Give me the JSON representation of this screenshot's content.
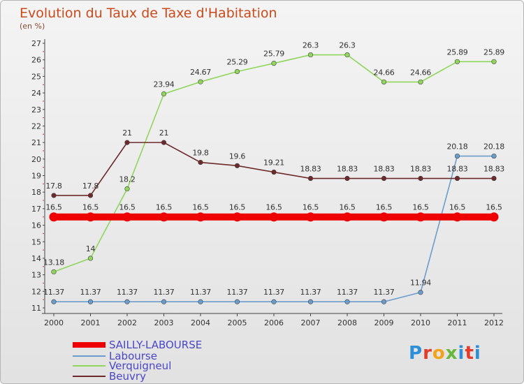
{
  "chart_data": {
    "type": "line",
    "title": "Evolution du Taux de Taxe d'Habitation",
    "subtitle": "(en %)",
    "x": [
      "2000",
      "2001",
      "2002",
      "2003",
      "2004",
      "2005",
      "2006",
      "2007",
      "2008",
      "2009",
      "2010",
      "2011",
      "2012"
    ],
    "ylim": [
      11,
      27
    ],
    "yticks": [
      11,
      12,
      13,
      14,
      15,
      16,
      17,
      18,
      19,
      20,
      21,
      22,
      23,
      24,
      25,
      26,
      27
    ],
    "grid": false,
    "legend_position": "bottom-left",
    "series": [
      {
        "name": "SAILLY-LABOURSE",
        "color": "#ee0000",
        "values": [
          16.5,
          16.5,
          16.5,
          16.5,
          16.5,
          16.5,
          16.5,
          16.5,
          16.5,
          16.5,
          16.5,
          16.5,
          16.5
        ],
        "labels": [
          "16.5",
          "16.5",
          "16.5",
          "16.5",
          "16.5",
          "16.5",
          "16.5",
          "16.5",
          "16.5",
          "16.5",
          "16.5",
          "16.5",
          "16.5"
        ]
      },
      {
        "name": "Labourse",
        "color": "#6a9ccc",
        "values": [
          11.37,
          11.37,
          11.37,
          11.37,
          11.37,
          11.37,
          11.37,
          11.37,
          11.37,
          11.37,
          11.94,
          20.18,
          20.18
        ],
        "labels": [
          "11.37",
          "11.37",
          "11.37",
          "11.37",
          "11.37",
          "11.37",
          "11.37",
          "11.37",
          "11.37",
          "11.37",
          "11.94",
          "20.18",
          "20.18"
        ]
      },
      {
        "name": "Verquigneul",
        "color": "#8fd65a",
        "values": [
          13.18,
          14,
          18.2,
          23.94,
          24.67,
          25.29,
          25.79,
          26.3,
          26.3,
          24.66,
          24.66,
          25.89,
          25.89
        ],
        "labels": [
          "13.18",
          "14",
          "18.2",
          "23.94",
          "24.67",
          "25.29",
          "25.79",
          "26.3",
          "26.3",
          "24.66",
          "24.66",
          "25.89",
          "25.89"
        ]
      },
      {
        "name": "Beuvry",
        "color": "#6e2a2a",
        "values": [
          17.8,
          17.8,
          21,
          21,
          19.8,
          19.6,
          19.21,
          18.83,
          18.83,
          18.83,
          18.83,
          18.83,
          18.83
        ],
        "labels": [
          "17.8",
          "17.8",
          "21",
          "21",
          "19.8",
          "19.6",
          "19.21",
          "18.83",
          "18.83",
          "18.83",
          "18.83",
          "18.83",
          "18.83"
        ]
      }
    ]
  },
  "logo": {
    "letters": [
      "P",
      "r",
      "o",
      "x",
      "i",
      "t",
      "i"
    ]
  }
}
